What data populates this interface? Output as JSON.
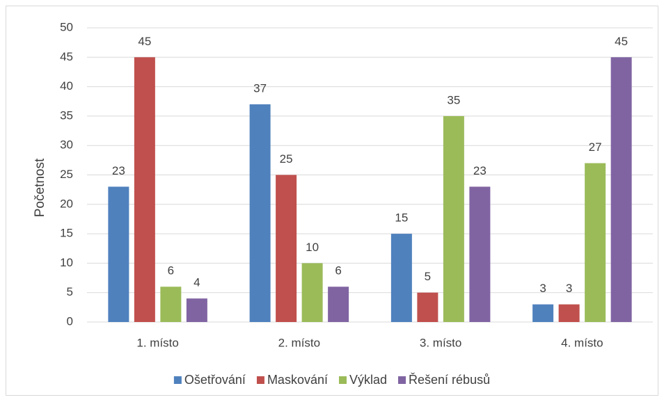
{
  "chart_data": {
    "type": "bar",
    "y_label": "Početnost",
    "categories": [
      "1. místo",
      "2. místo",
      "3. místo",
      "4. místo"
    ],
    "series": [
      {
        "name": "Ošetřování",
        "color": "#4f81bd",
        "values": [
          23,
          37,
          15,
          3
        ]
      },
      {
        "name": "Maskování",
        "color": "#c0504d",
        "values": [
          45,
          25,
          5,
          3
        ]
      },
      {
        "name": "Výklad",
        "color": "#9bbb59",
        "values": [
          6,
          10,
          35,
          27
        ]
      },
      {
        "name": "Řešení rébusů",
        "color": "#8064a2",
        "values": [
          4,
          6,
          23,
          45
        ]
      }
    ],
    "ylim": [
      0,
      50
    ],
    "yticks": [
      0,
      5,
      10,
      15,
      20,
      25,
      30,
      35,
      40,
      45,
      50
    ],
    "grid": true,
    "legend": "bottom"
  }
}
